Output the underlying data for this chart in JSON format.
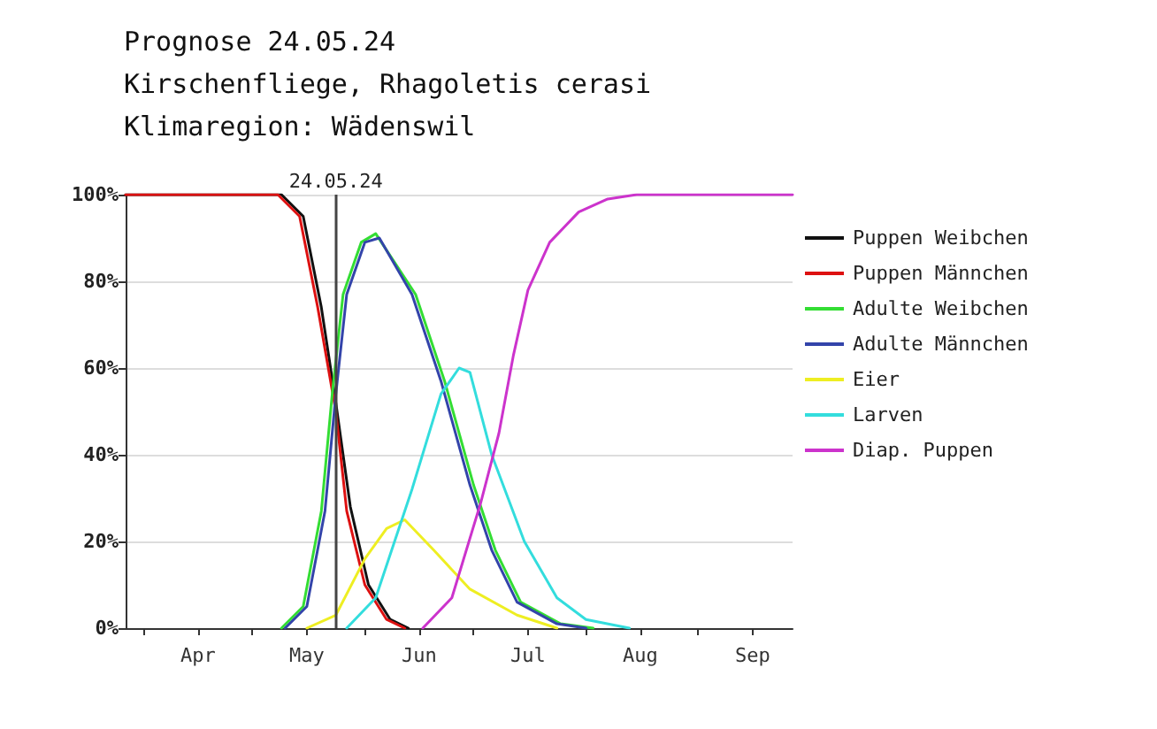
{
  "chart_data": {
    "type": "line",
    "title": "Prognose 24.05.24",
    "subtitle": "Kirschenfliege, Rhagoletis cerasi",
    "annotations": [
      "Klimaregion: Wädenswil"
    ],
    "xlim": [
      "--03-27",
      "--09-27"
    ],
    "xticks": [
      {
        "value": "--04-01",
        "label": null
      },
      {
        "value": "--04-16",
        "label": "Apr"
      },
      {
        "value": "--05-01",
        "label": null
      },
      {
        "value": "--05-16",
        "label": "May"
      },
      {
        "value": "--06-01",
        "label": null
      },
      {
        "value": "--06-16",
        "label": "Jun"
      },
      {
        "value": "--07-01",
        "label": null
      },
      {
        "value": "--07-16",
        "label": "Jul"
      },
      {
        "value": "--08-01",
        "label": null
      },
      {
        "value": "--08-16",
        "label": "Aug"
      },
      {
        "value": "--09-01",
        "label": null
      },
      {
        "value": "--09-16",
        "label": "Sep"
      }
    ],
    "ylim": [
      0,
      100
    ],
    "yticks": [
      {
        "value": 0,
        "label": "0%"
      },
      {
        "value": 20,
        "label": "20%"
      },
      {
        "value": 40,
        "label": "40%"
      },
      {
        "value": 60,
        "label": "60%"
      },
      {
        "value": 80,
        "label": "80%"
      },
      {
        "value": 100,
        "label": "100%"
      }
    ],
    "grid": "y",
    "legend": "right",
    "marker": "none",
    "line_style": "solid",
    "ref_lines": [
      {
        "axis": "x",
        "value": "--05-24",
        "label": "24.05.24",
        "color": "#444444"
      }
    ],
    "series": [
      {
        "name": "Puppen Weibchen",
        "color": "#111111",
        "x": [
          "--03-27",
          "--05-09",
          "--05-15",
          "--05-20",
          "--05-24",
          "--05-28",
          "--06-02",
          "--06-08",
          "--06-13"
        ],
        "values": [
          100,
          100,
          95,
          74,
          52,
          28,
          10,
          2,
          0
        ]
      },
      {
        "name": "Puppen Männchen",
        "color": "#dd1111",
        "x": [
          "--03-27",
          "--05-08",
          "--05-14",
          "--05-19",
          "--05-24",
          "--05-27",
          "--06-01",
          "--06-07",
          "--06-12"
        ],
        "values": [
          100,
          100,
          95,
          74,
          50,
          27,
          10,
          2,
          0
        ]
      },
      {
        "name": "Adulte Weibchen",
        "color": "#33dd33",
        "x": [
          "--05-09",
          "--05-15",
          "--05-20",
          "--05-23",
          "--05-26",
          "--05-31",
          "--06-04",
          "--06-15",
          "--06-23",
          "--07-01",
          "--07-07",
          "--07-14",
          "--07-25",
          "--08-03"
        ],
        "values": [
          0,
          5,
          27,
          54,
          77,
          89,
          91,
          77,
          57,
          33,
          18,
          6,
          1,
          0
        ]
      },
      {
        "name": "Adulte Männchen",
        "color": "#3344aa",
        "x": [
          "--05-10",
          "--05-16",
          "--05-21",
          "--05-24",
          "--05-27",
          "--06-01",
          "--06-05",
          "--06-14",
          "--06-22",
          "--06-30",
          "--07-06",
          "--07-13",
          "--07-24",
          "--08-01"
        ],
        "values": [
          0,
          5,
          27,
          54,
          77,
          89,
          90,
          77,
          57,
          33,
          18,
          6,
          1,
          0
        ]
      },
      {
        "name": "Eier",
        "color": "#eeee22",
        "x": [
          "--05-16",
          "--05-24",
          "--06-01",
          "--06-07",
          "--06-12",
          "--06-20",
          "--06-30",
          "--07-13",
          "--07-24"
        ],
        "values": [
          0,
          3,
          16,
          23,
          25,
          18,
          9,
          3,
          0
        ]
      },
      {
        "name": "Larven",
        "color": "#33dddd",
        "x": [
          "--05-27",
          "--06-04",
          "--06-14",
          "--06-22",
          "--06-27",
          "--06-30",
          "--07-06",
          "--07-15",
          "--07-24",
          "--08-01",
          "--08-13"
        ],
        "values": [
          0,
          7,
          32,
          54,
          60,
          59,
          40,
          20,
          7,
          2,
          0
        ]
      },
      {
        "name": "Diap. Puppen",
        "color": "#cc33cc",
        "x": [
          "--06-17",
          "--06-25",
          "--07-03",
          "--07-08",
          "--07-12",
          "--07-16",
          "--07-22",
          "--07-30",
          "--08-07",
          "--08-15",
          "--09-27"
        ],
        "values": [
          0,
          7,
          29,
          45,
          63,
          78,
          89,
          96,
          99,
          100,
          100
        ]
      }
    ]
  }
}
